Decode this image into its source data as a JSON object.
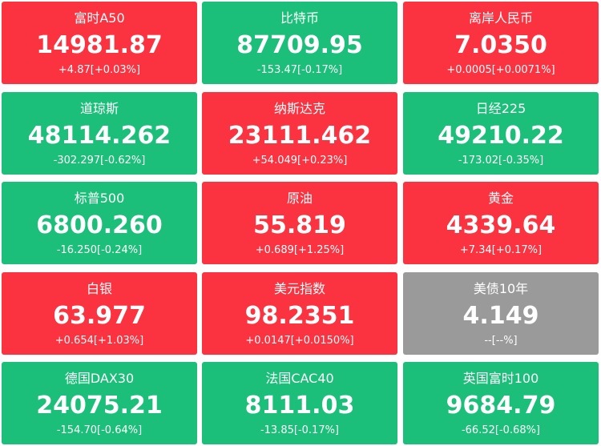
{
  "tiles": [
    {
      "name": "富时A50",
      "price": "14981.87",
      "change": "+4.87[+0.03%]",
      "color": "#fb3240"
    },
    {
      "name": "比特币",
      "price": "87709.95",
      "change": "-153.47[-0.17%]",
      "color": "#1bbf79"
    },
    {
      "name": "离岸人民币",
      "price": "7.0350",
      "change": "+0.0005[+0.0071%]",
      "color": "#fb3240"
    },
    {
      "name": "道琼斯",
      "price": "48114.262",
      "change": "-302.297[-0.62%]",
      "color": "#1bbf79"
    },
    {
      "name": "纳斯达克",
      "price": "23111.462",
      "change": "+54.049[+0.23%]",
      "color": "#fb3240"
    },
    {
      "name": "日经225",
      "price": "49210.22",
      "change": "-173.02[-0.35%]",
      "color": "#1bbf79"
    },
    {
      "name": "标普500",
      "price": "6800.260",
      "change": "-16.250[-0.24%]",
      "color": "#1bbf79"
    },
    {
      "name": "原油",
      "price": "55.819",
      "change": "+0.689[+1.25%]",
      "color": "#fb3240"
    },
    {
      "name": "黄金",
      "price": "4339.64",
      "change": "+7.34[+0.17%]",
      "color": "#fb3240"
    },
    {
      "name": "白银",
      "price": "63.977",
      "change": "+0.654[+1.03%]",
      "color": "#fb3240"
    },
    {
      "name": "美元指数",
      "price": "98.2351",
      "change": "+0.0147[+0.0150%]",
      "color": "#fb3240"
    },
    {
      "name": "美债10年",
      "price": "4.149",
      "change": "--[--%]",
      "color": "#9a9a9a"
    },
    {
      "name": "德国DAX30",
      "price": "24075.21",
      "change": "-154.70[-0.64%]",
      "color": "#1bbf79"
    },
    {
      "name": "法国CAC40",
      "price": "8111.03",
      "change": "-13.85[-0.17%]",
      "color": "#1bbf79"
    },
    {
      "name": "英国富时100",
      "price": "9684.79",
      "change": "-66.52[-0.68%]",
      "color": "#1bbf79"
    }
  ]
}
